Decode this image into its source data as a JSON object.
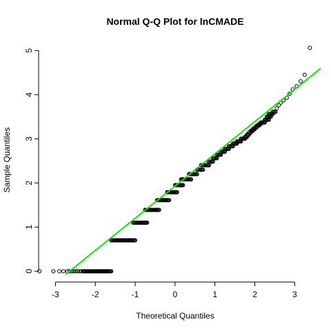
{
  "chart_data": {
    "type": "scatter",
    "title": "Normal Q-Q Plot for lnCMADE",
    "xlabel": "Theoretical Quantiles",
    "ylabel": "Sample Quantiles",
    "xlim": [
      -3.3,
      3.65
    ],
    "ylim": [
      -0.12,
      5.16
    ],
    "x_ticks": [
      -3,
      -2,
      -1,
      0,
      1,
      2,
      3
    ],
    "y_ticks": [
      0,
      1,
      2,
      3,
      4,
      5
    ],
    "grid": false,
    "legend": "none",
    "point_color": "#000000",
    "reference_line": {
      "color": "#00ee00",
      "intercept": 1.93,
      "slope": 0.73
    },
    "reference_line_x": [
      -2.75,
      3.65
    ],
    "zero_cluster_x": [
      -3.4,
      -3.05,
      -2.9,
      -2.8,
      -2.7,
      -2.65,
      -2.6,
      -2.55,
      -2.5,
      -2.45,
      -2.4,
      -2.35,
      -2.3
    ],
    "zero_band_x": [
      -2.3,
      -1.6
    ],
    "steps": [
      {
        "y": 0.7,
        "x": [
          -1.6,
          -1.0
        ]
      },
      {
        "y": 1.1,
        "x": [
          -1.05,
          -0.7
        ]
      },
      {
        "y": 1.39,
        "x": [
          -0.75,
          -0.4
        ]
      },
      {
        "y": 1.61,
        "x": [
          -0.45,
          -0.15
        ]
      },
      {
        "y": 1.79,
        "x": [
          -0.2,
          0.05
        ]
      },
      {
        "y": 1.95,
        "x": [
          0.0,
          0.2
        ]
      },
      {
        "y": 2.08,
        "x": [
          0.15,
          0.4
        ]
      },
      {
        "y": 2.2,
        "x": [
          0.35,
          0.55
        ]
      },
      {
        "y": 2.3,
        "x": [
          0.55,
          0.7
        ]
      },
      {
        "y": 2.4,
        "x": [
          0.65,
          0.85
        ]
      },
      {
        "y": 2.48,
        "x": [
          0.85,
          0.95
        ]
      },
      {
        "y": 2.56,
        "x": [
          0.95,
          1.05
        ]
      },
      {
        "y": 2.64,
        "x": [
          1.05,
          1.15
        ]
      },
      {
        "y": 2.71,
        "x": [
          1.15,
          1.25
        ]
      },
      {
        "y": 2.77,
        "x": [
          1.25,
          1.35
        ]
      },
      {
        "y": 2.83,
        "x": [
          1.35,
          1.45
        ]
      },
      {
        "y": 2.89,
        "x": [
          1.45,
          1.55
        ]
      },
      {
        "y": 2.94,
        "x": [
          1.55,
          1.65
        ]
      },
      {
        "y": 3.0,
        "x": [
          1.65,
          1.75
        ]
      },
      {
        "y": 3.04,
        "x": [
          1.75,
          1.8
        ]
      },
      {
        "y": 3.09,
        "x": [
          1.8,
          1.85
        ]
      },
      {
        "y": 3.14,
        "x": [
          1.85,
          1.9
        ]
      },
      {
        "y": 3.18,
        "x": [
          1.9,
          1.95
        ]
      },
      {
        "y": 3.22,
        "x": [
          1.95,
          2.0
        ]
      },
      {
        "y": 3.26,
        "x": [
          2.0,
          2.05
        ]
      },
      {
        "y": 3.3,
        "x": [
          2.05,
          2.1
        ]
      },
      {
        "y": 3.33,
        "x": [
          2.1,
          2.15
        ]
      },
      {
        "y": 3.37,
        "x": [
          2.15,
          2.25
        ]
      },
      {
        "y": 3.43,
        "x": [
          2.25,
          2.35
        ]
      },
      {
        "y": 3.5,
        "x": [
          2.3,
          2.4
        ]
      },
      {
        "y": 3.56,
        "x": [
          2.35,
          2.45
        ]
      },
      {
        "y": 3.61,
        "x": [
          2.45,
          2.52
        ]
      }
    ],
    "tail_points": [
      [
        2.55,
        3.69
      ],
      [
        2.6,
        3.76
      ],
      [
        2.65,
        3.82
      ],
      [
        2.72,
        3.87
      ],
      [
        2.8,
        3.93
      ],
      [
        2.87,
        4.02
      ],
      [
        2.95,
        4.12
      ],
      [
        3.05,
        4.19
      ],
      [
        3.15,
        4.3
      ],
      [
        3.25,
        4.45
      ],
      [
        3.38,
        5.06
      ]
    ]
  }
}
